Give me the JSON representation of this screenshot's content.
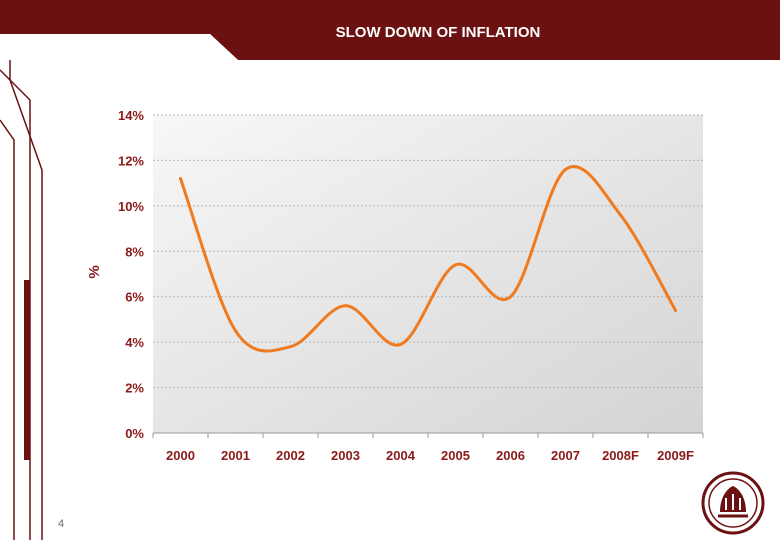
{
  "header": {
    "title": "SLOW DOWN OF INFLATION"
  },
  "page_number": "4",
  "colors": {
    "brand_dark_red": "#6b1111",
    "line": "#f07a1e",
    "axis_label": "#8b1a1a",
    "plot_bg_light": "#f7f7f7",
    "plot_bg_dark": "#d4d4d4"
  },
  "icons": {
    "logo": "crest-logo-icon"
  },
  "chart_data": {
    "type": "line",
    "title": "",
    "xlabel": "",
    "ylabel": "%",
    "categories": [
      "2000",
      "2001",
      "2002",
      "2003",
      "2004",
      "2005",
      "2006",
      "2007",
      "2008F",
      "2009F"
    ],
    "y_ticks": [
      "0%",
      "2%",
      "4%",
      "6%",
      "8%",
      "10%",
      "12%",
      "14%"
    ],
    "ylim": [
      0,
      14
    ],
    "grid": true,
    "legend": "none",
    "series": [
      {
        "values": [
          11.2,
          4.5,
          3.8,
          5.6,
          3.9,
          7.4,
          6.0,
          11.6,
          9.6,
          5.4
        ]
      }
    ]
  }
}
